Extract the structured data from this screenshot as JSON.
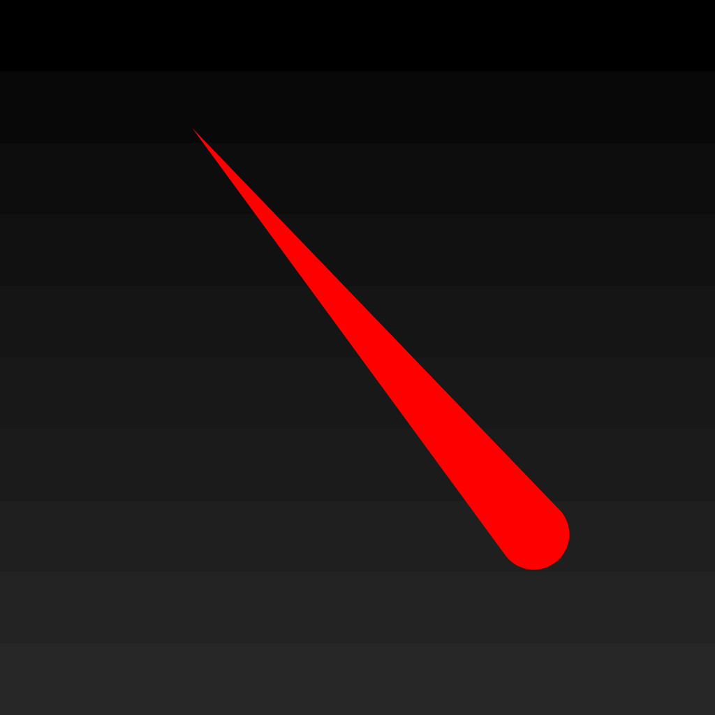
{
  "background": {
    "band_colors": [
      "#000000",
      "#080808",
      "#0d0d0d",
      "#111111",
      "#151515",
      "#181818",
      "#1b1b1b",
      "#1f1f1f",
      "#232323",
      "#272727"
    ],
    "band_icon": "gradient-band"
  },
  "needle": {
    "icon": "needle-icon",
    "color": "#ff0000"
  }
}
